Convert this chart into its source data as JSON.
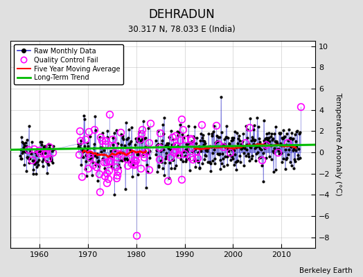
{
  "title": "DEHRADUN",
  "subtitle": "30.317 N, 78.033 E (India)",
  "credit": "Berkeley Earth",
  "ylabel": "Temperature Anomaly (°C)",
  "xlim": [
    1954,
    2017
  ],
  "ylim": [
    -9,
    10.5
  ],
  "yticks": [
    -8,
    -6,
    -4,
    -2,
    0,
    2,
    4,
    6,
    8,
    10
  ],
  "xticks": [
    1960,
    1970,
    1980,
    1990,
    2000,
    2010
  ],
  "bg_color": "#e0e0e0",
  "plot_bg_color": "#ffffff",
  "line_color": "#3333cc",
  "marker_color": "#000000",
  "qc_color": "#ff00ff",
  "moving_avg_color": "#ff0000",
  "trend_color": "#00bb00",
  "seed": 12345
}
